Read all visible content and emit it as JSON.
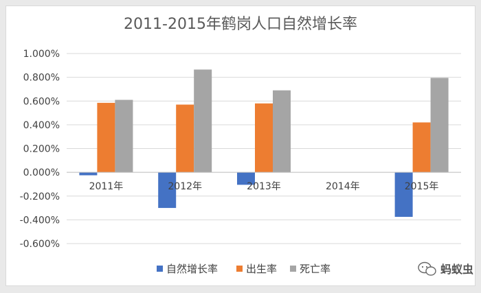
{
  "chart_data": {
    "type": "bar",
    "title": "2011-2015年鹤岗人口自然增长率",
    "categories": [
      "2011年",
      "2012年",
      "2013年",
      "2014年",
      "2015年"
    ],
    "series": [
      {
        "name": "自然增长率",
        "color": "#4472c4",
        "values": [
          -0.025,
          -0.3,
          -0.105,
          null,
          -0.375
        ]
      },
      {
        "name": "出生率",
        "color": "#ed7d31",
        "values": [
          0.585,
          0.57,
          0.58,
          null,
          0.42
        ]
      },
      {
        "name": "死亡率",
        "color": "#a5a5a5",
        "values": [
          0.61,
          0.865,
          0.69,
          null,
          0.795
        ]
      }
    ],
    "yticks": [
      "1.000%",
      "0.800%",
      "0.600%",
      "0.400%",
      "0.200%",
      "0.000%",
      "-0.200%",
      "-0.400%",
      "-0.600%"
    ],
    "ylim": [
      -0.6,
      1.0
    ],
    "grid": true,
    "legend_position": "bottom"
  },
  "watermark": {
    "text": "蚂蚁虫",
    "icon": "wechat-icon"
  }
}
